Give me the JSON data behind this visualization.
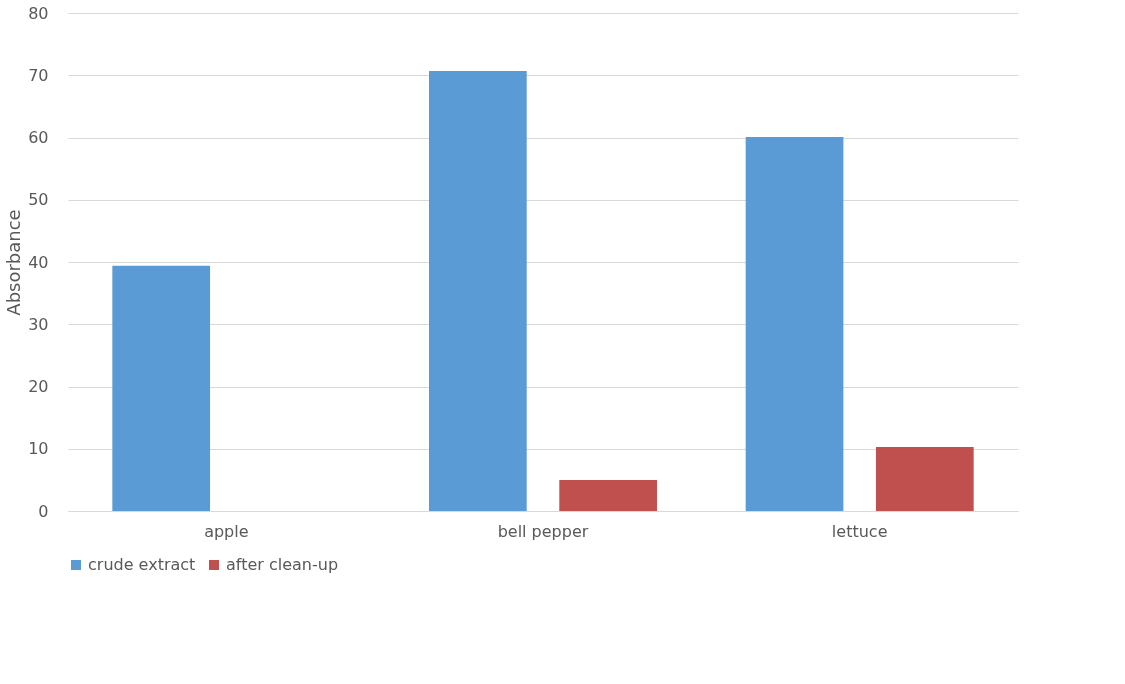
{
  "chart_data": {
    "type": "bar",
    "ylabel": "Absorbance",
    "categories": [
      "apple",
      "bell pepper",
      "lettuce"
    ],
    "series": [
      {
        "name": "crude extract",
        "color": "#5b9bd5",
        "values": [
          39.4,
          70.7,
          60.1
        ]
      },
      {
        "name": "after clean-up",
        "color": "#c0504d",
        "values": [
          null,
          5.0,
          10.3
        ]
      }
    ],
    "ylim": [
      0,
      80
    ],
    "yticks": [
      0,
      10,
      20,
      30,
      40,
      50,
      60,
      70,
      80
    ],
    "grid": "y",
    "legend": "bottom"
  }
}
